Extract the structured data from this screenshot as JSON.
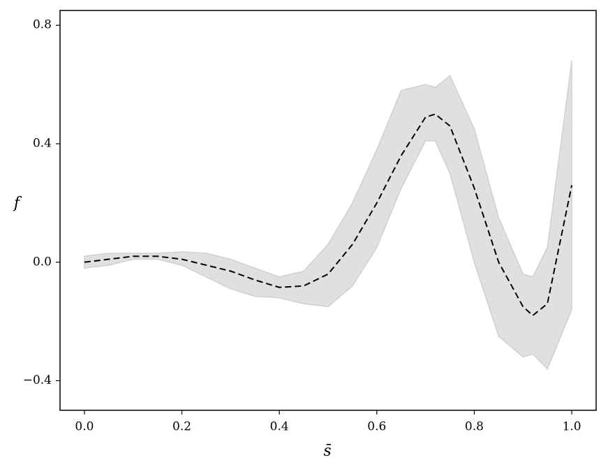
{
  "chart_data": {
    "type": "line",
    "x_label": "s̄",
    "y_label": "f",
    "x": [
      0,
      0.05,
      0.1,
      0.15,
      0.2,
      0.25,
      0.3,
      0.35,
      0.4,
      0.45,
      0.5,
      0.55,
      0.6,
      0.65,
      0.7,
      0.72,
      0.75,
      0.8,
      0.85,
      0.9,
      0.92,
      0.95,
      1.0
    ],
    "series": [
      {
        "color": "#000000",
        "dashed": true,
        "values": [
          0.0,
          0.01,
          0.02,
          0.02,
          0.01,
          -0.01,
          -0.03,
          -0.06,
          -0.085,
          -0.08,
          -0.04,
          0.06,
          0.2,
          0.36,
          0.49,
          0.5,
          0.46,
          0.25,
          0.0,
          -0.15,
          -0.18,
          -0.14,
          0.26
        ]
      }
    ],
    "band": {
      "color": "#e0e0e0",
      "edge_color": "#d0d0d0",
      "upper": [
        0.02,
        0.03,
        0.03,
        0.03,
        0.035,
        0.03,
        0.01,
        -0.02,
        -0.05,
        -0.03,
        0.06,
        0.2,
        0.38,
        0.58,
        0.6,
        0.59,
        0.63,
        0.45,
        0.15,
        -0.04,
        -0.05,
        0.05,
        0.68
      ],
      "lower": [
        -0.02,
        -0.01,
        0.01,
        0.01,
        -0.01,
        -0.05,
        -0.09,
        -0.115,
        -0.12,
        -0.14,
        -0.15,
        -0.08,
        0.05,
        0.25,
        0.41,
        0.41,
        0.3,
        0.0,
        -0.25,
        -0.32,
        -0.31,
        -0.36,
        -0.16
      ]
    },
    "xlim": [
      -0.05,
      1.05
    ],
    "ylim": [
      -0.5,
      0.85
    ],
    "xticks": [
      {
        "value": 0,
        "label": "0.0"
      },
      {
        "value": 0.2,
        "label": "0.2"
      },
      {
        "value": 0.4,
        "label": "0.4"
      },
      {
        "value": 0.6,
        "label": "0.6"
      },
      {
        "value": 0.8,
        "label": "0.8"
      },
      {
        "value": 1.0,
        "label": "1.0"
      }
    ],
    "yticks": [
      {
        "value": -0.4,
        "label": "−0.4"
      },
      {
        "value": 0,
        "label": "0.0"
      },
      {
        "value": 0.4,
        "label": "0.4"
      },
      {
        "value": 0.8,
        "label": "0.8"
      }
    ]
  }
}
